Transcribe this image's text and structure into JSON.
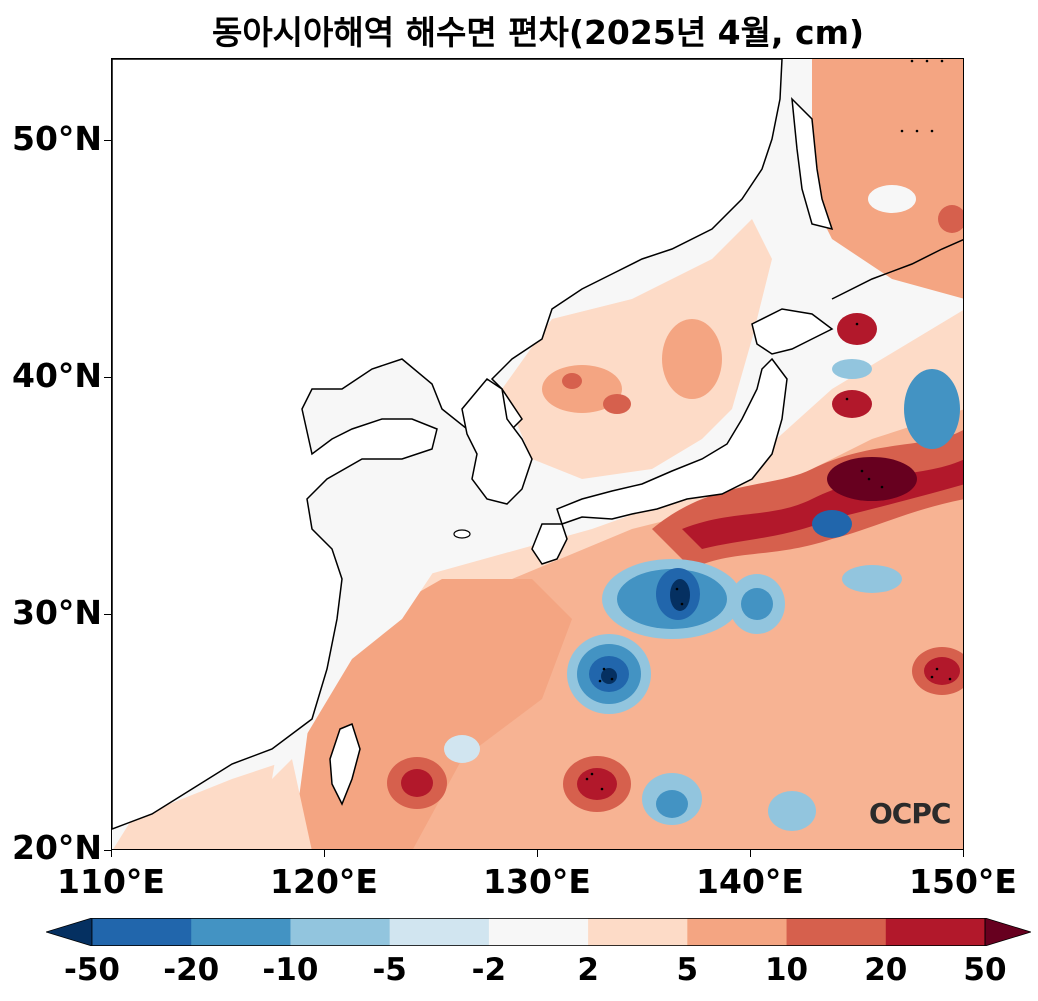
{
  "title": "동아시아해역 해수면 편차(2025년 4월, cm)",
  "watermark": "OCPC",
  "axes": {
    "lat_ticks": [
      "50°N",
      "40°N",
      "30°N",
      "20°N"
    ],
    "lon_ticks": [
      "110°E",
      "120°E",
      "130°E",
      "140°E",
      "150°E"
    ],
    "lat_range": [
      20,
      53.5
    ],
    "lon_range": [
      110,
      150
    ]
  },
  "colorbar": {
    "labels": [
      "-50",
      "-20",
      "-10",
      "-5",
      "-2",
      "2",
      "5",
      "10",
      "20",
      "50"
    ],
    "colors": [
      "#053061",
      "#2166ac",
      "#4393c3",
      "#92c5de",
      "#d1e5f0",
      "#f7f7f7",
      "#fddbc7",
      "#f4a582",
      "#d6604d",
      "#b2182b",
      "#67001f"
    ],
    "extend": "both"
  },
  "land_color": "#ffffff",
  "coast_color": "#000000"
}
